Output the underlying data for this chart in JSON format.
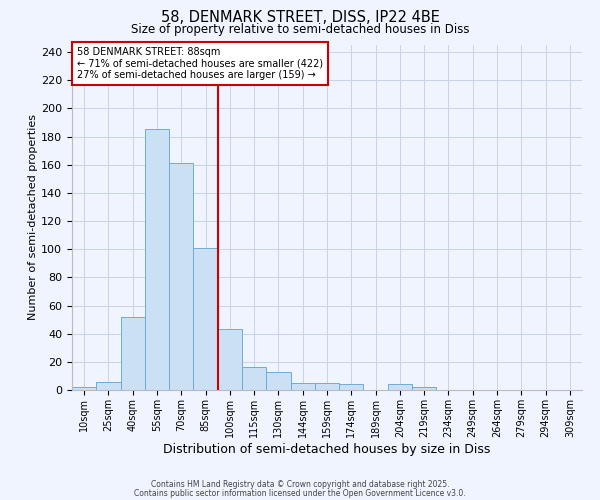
{
  "title": "58, DENMARK STREET, DISS, IP22 4BE",
  "subtitle": "Size of property relative to semi-detached houses in Diss",
  "xlabel": "Distribution of semi-detached houses by size in Diss",
  "ylabel": "Number of semi-detached properties",
  "categories": [
    "10sqm",
    "25sqm",
    "40sqm",
    "55sqm",
    "70sqm",
    "85sqm",
    "100sqm",
    "115sqm",
    "130sqm",
    "144sqm",
    "159sqm",
    "174sqm",
    "189sqm",
    "204sqm",
    "219sqm",
    "234sqm",
    "249sqm",
    "264sqm",
    "279sqm",
    "294sqm",
    "309sqm"
  ],
  "bar_values": [
    2,
    6,
    52,
    185,
    161,
    101,
    43,
    16,
    13,
    5,
    5,
    4,
    0,
    4,
    2,
    0,
    0,
    0,
    0,
    0,
    0
  ],
  "bar_color_fill": "#cce0f5",
  "bar_color_edge": "#6baed6",
  "vline_x": 5.5,
  "vline_color": "#cc0000",
  "annotation_title": "58 DENMARK STREET: 88sqm",
  "annotation_line1": "← 71% of semi-detached houses are smaller (422)",
  "annotation_line2": "27% of semi-detached houses are larger (159) →",
  "annotation_box_color": "#cc0000",
  "ylim": [
    0,
    245
  ],
  "yticks": [
    0,
    20,
    40,
    60,
    80,
    100,
    120,
    140,
    160,
    180,
    200,
    220,
    240
  ],
  "footnote1": "Contains HM Land Registry data © Crown copyright and database right 2025.",
  "footnote2": "Contains public sector information licensed under the Open Government Licence v3.0.",
  "background_color": "#f0f4ff",
  "grid_color": "#c8d4e8"
}
